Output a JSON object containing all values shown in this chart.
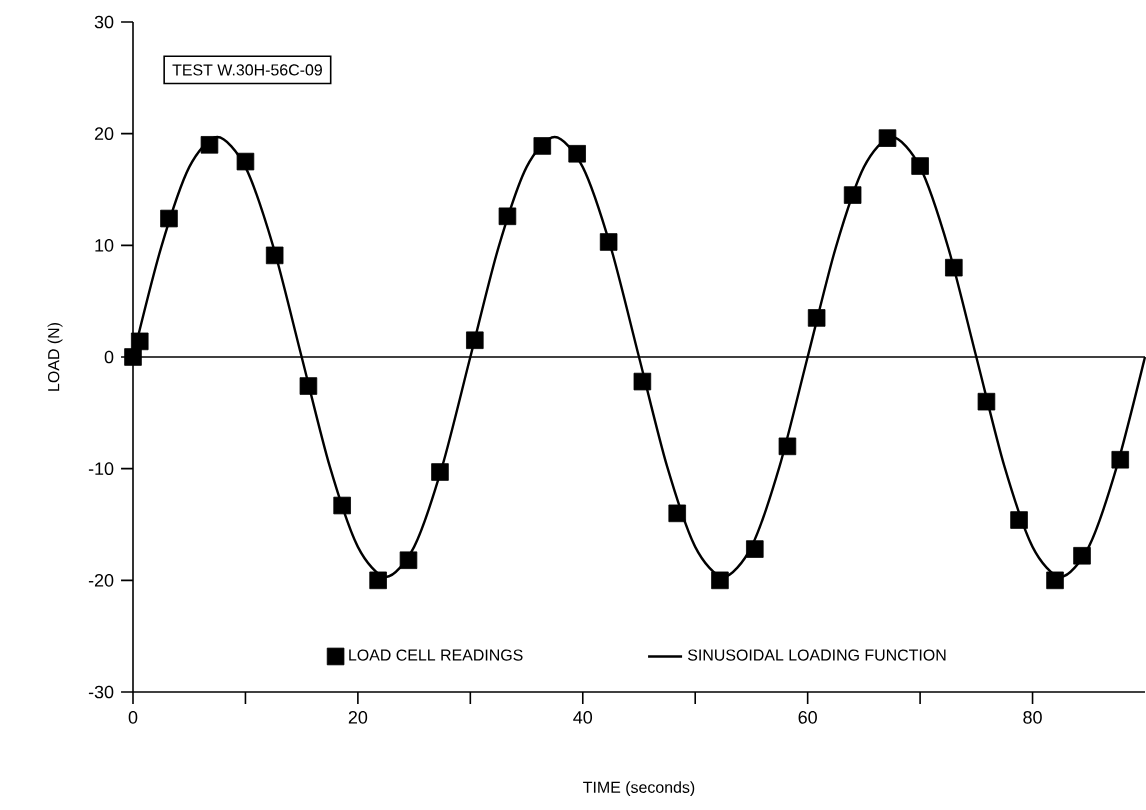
{
  "chart_data": {
    "type": "scatter",
    "xlabel": "TIME (seconds)",
    "ylabel": "LOAD (N)",
    "annotations": [
      "TEST W.30H-56C-09"
    ],
    "xlim": [
      0,
      90
    ],
    "ylim": [
      -30,
      30
    ],
    "xticks": [
      0,
      {
        "value": 10,
        "label": null
      },
      20,
      {
        "value": 30,
        "label": null
      },
      40,
      {
        "value": 50,
        "label": null
      },
      60,
      {
        "value": 70,
        "label": null
      },
      80
    ],
    "yticks": [
      -30,
      -20,
      -10,
      0,
      10,
      20,
      30
    ],
    "legend": "bottom",
    "grid": false,
    "ref_lines": [
      {
        "axis": "y",
        "value": 0,
        "color": "#000000"
      }
    ],
    "series": [
      {
        "name": "LOAD CELL READINGS",
        "marker": "square",
        "color": "#000000",
        "x": [
          0,
          0.6,
          3.2,
          6.8,
          10,
          12.6,
          15.6,
          18.6,
          21.8,
          24.5,
          27.3,
          30.4,
          33.3,
          36.4,
          39.5,
          42.3,
          45.3,
          48.4,
          52.2,
          55.3,
          58.2,
          60.8,
          64,
          67.1,
          70,
          73,
          75.9,
          78.8,
          82,
          84.4,
          87.8
        ],
        "values": [
          0,
          1.4,
          12.4,
          19,
          17.5,
          9.1,
          -2.6,
          -13.3,
          -20,
          -18.2,
          -10.3,
          1.5,
          12.6,
          18.9,
          18.2,
          10.3,
          -2.2,
          -14,
          -20,
          -17.2,
          -8,
          3.5,
          14.5,
          19.6,
          17.1,
          8,
          -4,
          -14.6,
          -20,
          -17.8,
          -9.2
        ]
      },
      {
        "name": "SINUSOIDAL LOADING FUNCTION",
        "type": "line",
        "marker": "none",
        "line_style": "solid",
        "color": "#000000",
        "x": [
          0,
          2.5,
          5,
          7.5,
          10,
          12.5,
          15,
          17.5,
          20,
          22.5,
          25,
          27.5,
          30,
          32.5,
          35,
          37.5,
          40,
          42.5,
          45,
          47.5,
          50,
          52.5,
          55,
          57.5,
          60,
          62.5,
          65,
          67.5,
          70,
          72.5,
          75,
          77.5,
          80,
          82.5,
          85,
          87.5,
          90
        ],
        "values": [
          0,
          9.8,
          17,
          19.7,
          17,
          9.8,
          0,
          -9.8,
          -17,
          -19.7,
          -17,
          -9.8,
          0,
          9.8,
          17,
          19.7,
          17,
          9.8,
          0,
          -9.8,
          -17,
          -19.7,
          -17,
          -9.8,
          0,
          9.8,
          17,
          19.7,
          17,
          9.8,
          0,
          -9.8,
          -17,
          -19.7,
          -17,
          -9.8,
          0
        ]
      }
    ]
  }
}
